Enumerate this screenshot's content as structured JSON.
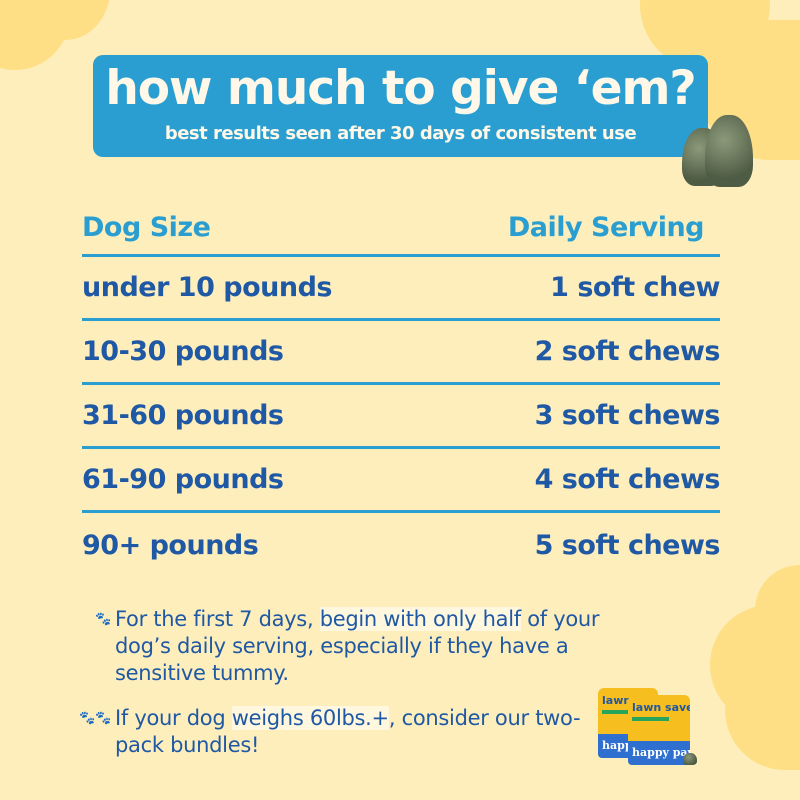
{
  "colors": {
    "background": "#FEEEBB",
    "blob": "#FFDF85",
    "banner": "#2A9ED1",
    "text_dark_blue": "#1F58A4",
    "header_blue": "#2A9ED1"
  },
  "banner": {
    "title": "how much to give ‘em?",
    "subtitle": "best results seen after 30 days of consistent use"
  },
  "table": {
    "headers": [
      "Dog Size",
      "Daily Serving"
    ],
    "rows": [
      {
        "size": "under 10 pounds",
        "serving": "1 soft chew"
      },
      {
        "size": "10-30 pounds",
        "serving": "2 soft chews"
      },
      {
        "size": "31-60 pounds",
        "serving": "3 soft chews"
      },
      {
        "size": "61-90 pounds",
        "serving": "4 soft chews"
      },
      {
        "size": "90+ pounds",
        "serving": "5 soft chews"
      }
    ]
  },
  "notes": [
    {
      "icon": "paw-icon",
      "pre": "For the first 7 days, ",
      "highlight": "begin with only half",
      "post": " of your dog’s daily serving, especially if they have a sensitive tummy."
    },
    {
      "icon": "two-paws-icon",
      "pre": "If your dog ",
      "highlight": "weighs 60lbs.+",
      "post": ", consider our two-pack bundles!"
    }
  ],
  "product": {
    "name": "lawn saver",
    "brand": "happy paws"
  }
}
